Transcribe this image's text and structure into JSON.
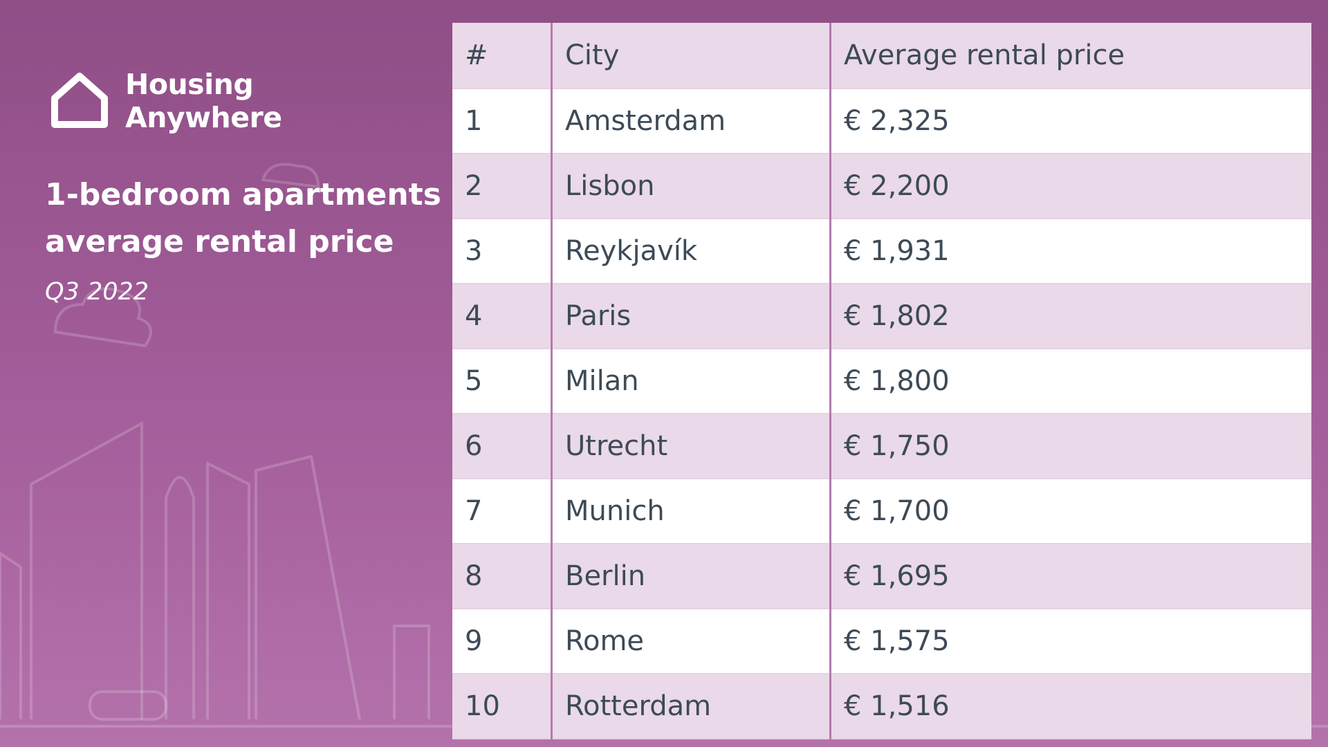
{
  "logo": {
    "line1": "Housing",
    "line2": "Anywhere"
  },
  "title": {
    "line1": "1-bedroom apartments",
    "line2": "average rental price"
  },
  "subtitle": "Q3 2022",
  "table": {
    "header": [
      "#",
      "City",
      "Average rental price"
    ],
    "rows": [
      [
        "1",
        "Amsterdam",
        "€ 2,325"
      ],
      [
        "2",
        "Lisbon",
        "€ 2,200"
      ],
      [
        "3",
        "Reykjavík",
        "€ 1,931"
      ],
      [
        "4",
        "Paris",
        "€ 1,802"
      ],
      [
        "5",
        "Milan",
        "€ 1,800"
      ],
      [
        "6",
        "Utrecht",
        "€ 1,750"
      ],
      [
        "7",
        "Munich",
        "€ 1,700"
      ],
      [
        "8",
        "Berlin",
        "€ 1,695"
      ],
      [
        "9",
        "Rome",
        "€ 1,575"
      ],
      [
        "10",
        "Rotterdam",
        "€ 1,516"
      ]
    ]
  }
}
